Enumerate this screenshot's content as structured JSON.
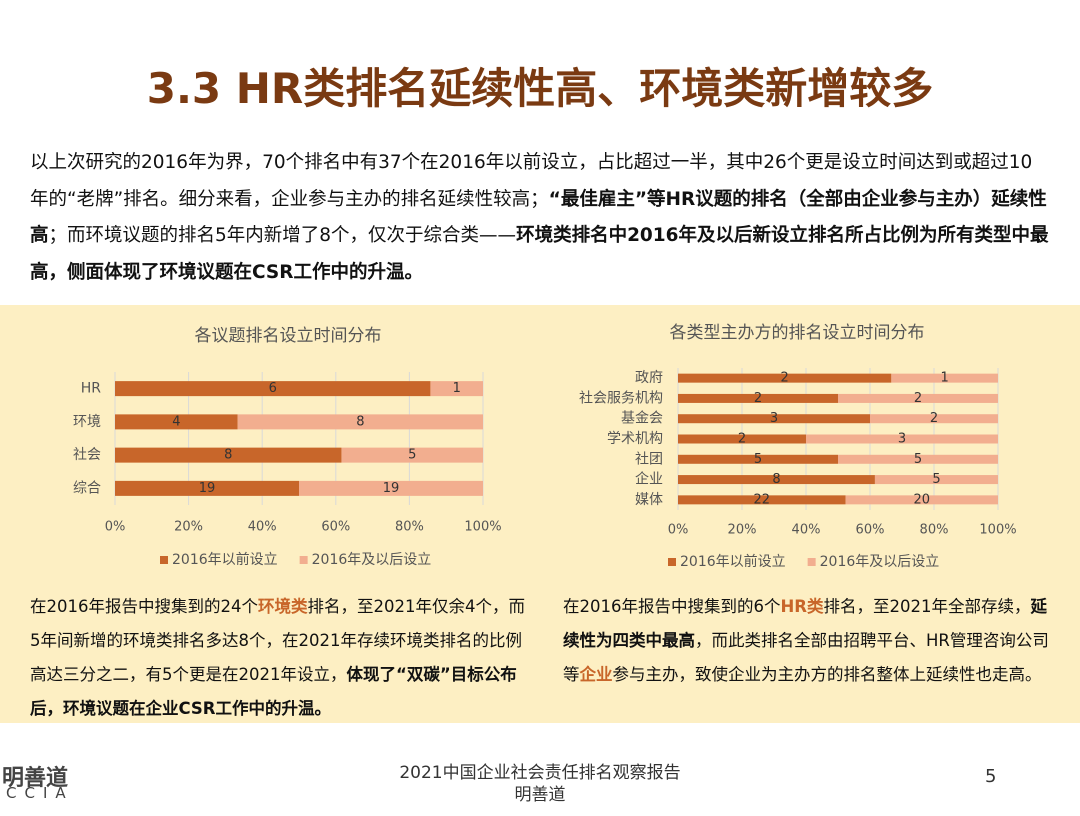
{
  "title": "3.3 HR类排名延续性高、环境类新增较多",
  "paragraph": {
    "runs": [
      {
        "text": "以上次研究的2016年为界，70个排名中有37个在2016年以前设立，占比超过一半，其中26个更是设立时间达到或超过10年的“老牌”排名。细分来看，企业参与主办的排名延续性较高；",
        "bold": false
      },
      {
        "text": "“最佳雇主”等HR议题的排名（全部由企业参与主办）延续性高",
        "bold": true
      },
      {
        "text": "；而环境议题的排名5年内新增了8个，仅次于综合类——",
        "bold": false
      },
      {
        "text": "环境类排名中2016年及以后新设立排名所占比例为所有类型中最高，侧面体现了环境议题在CSR工作中的升温。",
        "bold": true
      }
    ]
  },
  "chart_data": [
    {
      "type": "bar",
      "orientation": "horizontal",
      "stacking": "percent",
      "title": "各议题排名设立时间分布",
      "categories": [
        "HR",
        "环境",
        "社会",
        "综合"
      ],
      "series": [
        {
          "name": "2016年以前设立",
          "color": "#c8662a",
          "values": [
            6,
            4,
            8,
            19
          ]
        },
        {
          "name": "2016年及以后设立",
          "color": "#f2ae8f",
          "values": [
            1,
            8,
            5,
            19
          ]
        }
      ],
      "xlim": [
        0,
        100
      ],
      "xticks": [
        {
          "value": 0,
          "label": "0%"
        },
        {
          "value": 20,
          "label": "20%"
        },
        {
          "value": 40,
          "label": "40%"
        },
        {
          "value": 60,
          "label": "60%"
        },
        {
          "value": 80,
          "label": "80%"
        },
        {
          "value": 100,
          "label": "100%"
        }
      ],
      "grid": true,
      "legend": "bottom"
    },
    {
      "type": "bar",
      "orientation": "horizontal",
      "stacking": "percent",
      "title": "各类型主办方的排名设立时间分布",
      "categories": [
        "政府",
        "社会服务机构",
        "基金会",
        "学术机构",
        "社团",
        "企业",
        "媒体"
      ],
      "series": [
        {
          "name": "2016年以前设立",
          "color": "#c8662a",
          "values": [
            2,
            2,
            3,
            2,
            5,
            8,
            22
          ]
        },
        {
          "name": "2016年及以后设立",
          "color": "#f2ae8f",
          "values": [
            1,
            2,
            2,
            3,
            5,
            5,
            20
          ]
        }
      ],
      "xlim": [
        0,
        100
      ],
      "xticks": [
        {
          "value": 0,
          "label": "0%"
        },
        {
          "value": 20,
          "label": "20%"
        },
        {
          "value": 40,
          "label": "40%"
        },
        {
          "value": 60,
          "label": "60%"
        },
        {
          "value": 80,
          "label": "80%"
        },
        {
          "value": 100,
          "label": "100%"
        }
      ],
      "grid": true,
      "legend": "bottom"
    }
  ],
  "captions": [
    {
      "runs": [
        {
          "text": "在2016年报告中搜集到的24个",
          "bold": false
        },
        {
          "text": "环境类",
          "bold": true,
          "color": "#c8662a"
        },
        {
          "text": "排名，至2021年仅余4个，而5年间新增的环境类排名多达8个，在2021年存续环境类排名的比例高达三分之二，有5个更是在2021年设立，",
          "bold": false
        },
        {
          "text": "体现了“双碳”目标公布后，环境议题在企业CSR工作中的升温。",
          "bold": true
        }
      ]
    },
    {
      "runs": [
        {
          "text": "在2016年报告中搜集到的6个",
          "bold": false
        },
        {
          "text": "HR类",
          "bold": true,
          "color": "#c8662a"
        },
        {
          "text": "排名，至2021年全部存续，",
          "bold": false
        },
        {
          "text": "延续性为四类中最高",
          "bold": true
        },
        {
          "text": "，而此类排名全部由招聘平台、HR管理咨询公司等",
          "bold": false
        },
        {
          "text": "企业",
          "bold": true,
          "color": "#c8662a"
        },
        {
          "text": "参与主办，致使企业为主办方的排名整体上延续性也走高。",
          "bold": false
        }
      ]
    }
  ],
  "footer": {
    "logo_cn": "明善道",
    "logo_en": "CCIA",
    "report": "2021中国企业社会责任排名观察报告",
    "org": "明善道",
    "page": "5"
  }
}
